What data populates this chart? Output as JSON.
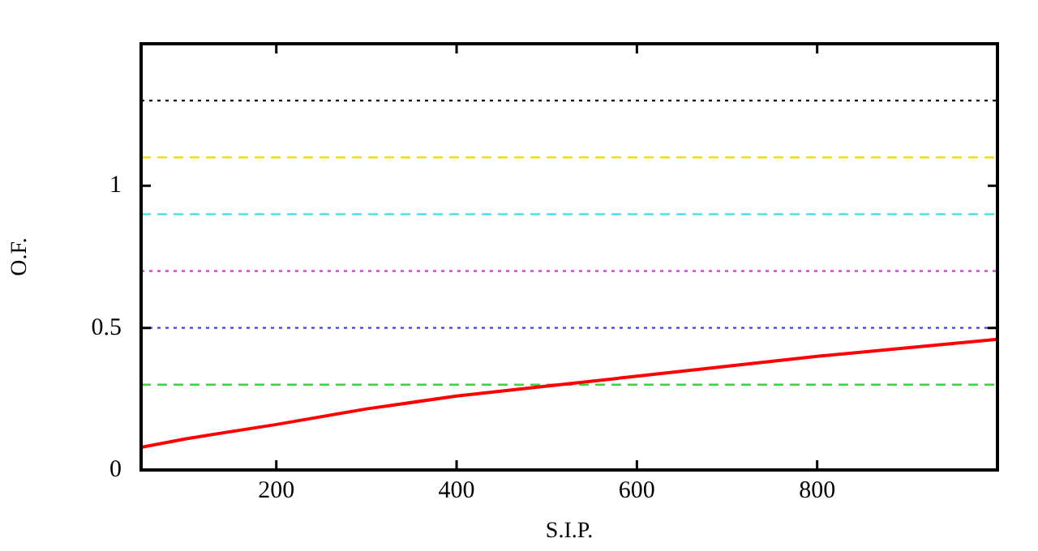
{
  "chart_data": {
    "type": "line",
    "xlabel": "S.I.P.",
    "ylabel": "O.F.",
    "x": [
      50,
      100,
      200,
      300,
      400,
      500,
      600,
      700,
      800,
      900,
      1000
    ],
    "series": [
      {
        "color": "#ff0000",
        "values": [
          0.08,
          0.11,
          0.16,
          0.215,
          0.26,
          0.295,
          0.33,
          0.365,
          0.4,
          0.43,
          0.46
        ]
      }
    ],
    "xlim": [
      50,
      1000
    ],
    "xticks": [
      200,
      400,
      600,
      800
    ],
    "ylim": [
      0,
      1.5
    ],
    "yticks": [
      0,
      0.5,
      1
    ],
    "ref_lines": [
      {
        "axis": "y",
        "value": 1.3,
        "color": "#000000",
        "line_style": "dotted"
      },
      {
        "axis": "y",
        "value": 1.1,
        "color": "#f0e000",
        "line_style": "dashed"
      },
      {
        "axis": "y",
        "value": 0.9,
        "color": "#40e0e0",
        "line_style": "dashed"
      },
      {
        "axis": "y",
        "value": 0.7,
        "color": "#e040e0",
        "line_style": "dotted"
      },
      {
        "axis": "y",
        "value": 0.5,
        "color": "#4040e0",
        "line_style": "dotted"
      },
      {
        "axis": "y",
        "value": 0.3,
        "color": "#40d040",
        "line_style": "dashed"
      }
    ],
    "grid": false,
    "legend": false,
    "marker": "none",
    "line_style": "solid"
  }
}
